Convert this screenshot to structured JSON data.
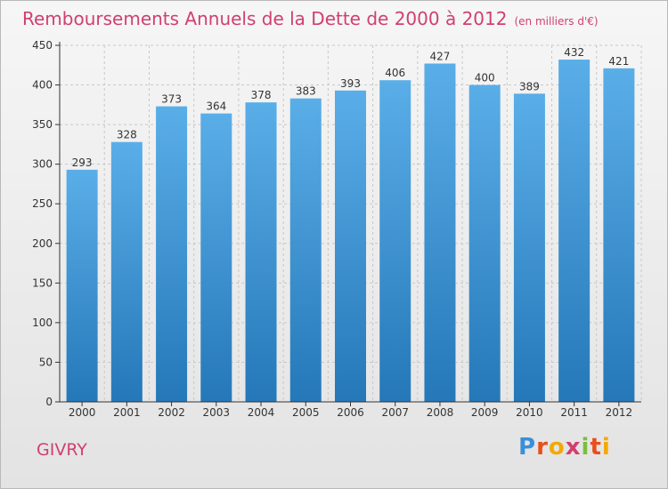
{
  "title": "Remboursements Annuels de la Dette de 2000 à 2012",
  "subtitle": "(en milliers d'€)",
  "city": "GIVRY",
  "logo_text": "Proxiti",
  "colors": {
    "title": "#d0406f",
    "bar_top": "#5aaee8",
    "bar_bottom": "#2578b8",
    "axis": "#333333",
    "grid": "#c8c8c8"
  },
  "chart_data": {
    "type": "bar",
    "categories": [
      "2000",
      "2001",
      "2002",
      "2003",
      "2004",
      "2005",
      "2006",
      "2007",
      "2008",
      "2009",
      "2010",
      "2011",
      "2012"
    ],
    "values": [
      293,
      328,
      373,
      364,
      378,
      383,
      393,
      406,
      427,
      400,
      389,
      432,
      421
    ],
    "ylim": [
      0,
      450
    ],
    "yticks": [
      0,
      50,
      100,
      150,
      200,
      250,
      300,
      350,
      400,
      450
    ],
    "grid": "horizontal dashed",
    "data_labels": true
  }
}
